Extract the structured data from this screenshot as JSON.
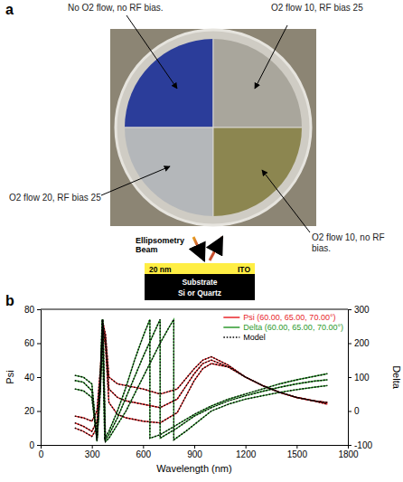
{
  "panel_a": {
    "letter": "a",
    "labels": [
      "No O2 flow, no RF bias.",
      "O2 flow 10, RF bias 25",
      "O2 flow 20, RF bias 25",
      "O2 flow 10, no RF bias."
    ]
  },
  "panel_b": {
    "letter": "b",
    "beam_label": "Ellipsometry Beam",
    "layer_thickness": "20 nm",
    "layer": "ITO",
    "substrate": "Substrate",
    "substrate_material": "Si or Quartz"
  },
  "chart_data": {
    "type": "line",
    "x_label": "Wavelength (nm)",
    "y_label": "Psi",
    "y2_label": "Delta",
    "xlim": [
      0,
      1800
    ],
    "xticks": [
      0,
      300,
      600,
      900,
      1200,
      1500,
      1800
    ],
    "ylim": [
      0,
      80
    ],
    "yticks": [
      0,
      20,
      40,
      60,
      80
    ],
    "y2lim": [
      -100,
      300
    ],
    "y2ticks": [
      -100,
      0,
      100,
      200,
      300
    ],
    "grid": false,
    "legend": "upper right",
    "series": [
      {
        "name": "Psi (60.00, 65.00, 70.00°)",
        "color": "#e8262a",
        "line_style": "solid",
        "axis": "y",
        "x": [
          200,
          250,
          300,
          330,
          350,
          365,
          380,
          400,
          450,
          500,
          600,
          700,
          800,
          900,
          950,
          1000,
          1100,
          1200,
          1300,
          1400,
          1500,
          1600,
          1680
        ],
        "values": [
          17,
          16,
          14,
          20,
          45,
          72,
          65,
          40,
          36,
          35,
          33,
          30,
          33,
          45,
          50,
          52,
          47,
          40,
          35,
          31,
          28,
          26,
          25
        ]
      },
      {
        "name": "Psi (60.00, 65.00, 70.00°)",
        "color": "#e8262a",
        "line_style": "solid",
        "axis": "y",
        "x": [
          200,
          250,
          300,
          330,
          350,
          365,
          380,
          400,
          450,
          500,
          600,
          700,
          800,
          900,
          950,
          1000,
          1100,
          1200,
          1300,
          1400,
          1500,
          1600,
          1680
        ],
        "values": [
          13,
          11,
          8,
          14,
          40,
          70,
          62,
          33,
          28,
          26,
          24,
          22,
          27,
          42,
          48,
          50,
          46,
          40,
          35,
          31,
          28,
          26,
          25
        ]
      },
      {
        "name": "Psi (60.00, 65.00, 70.00°)",
        "color": "#e8262a",
        "line_style": "solid",
        "axis": "y",
        "x": [
          200,
          250,
          300,
          330,
          350,
          365,
          380,
          400,
          450,
          500,
          600,
          700,
          800,
          900,
          950,
          1000,
          1100,
          1200,
          1300,
          1400,
          1500,
          1600,
          1680
        ],
        "values": [
          10,
          8,
          5,
          10,
          35,
          68,
          58,
          25,
          18,
          16,
          14,
          13,
          19,
          38,
          45,
          48,
          46,
          40,
          35,
          31,
          28,
          26,
          24
        ]
      },
      {
        "name": "Delta (60.00, 65.00, 70.00°)",
        "color": "#2e9a2e",
        "line_style": "solid",
        "axis": "y2",
        "x": [
          200,
          250,
          300,
          330,
          350,
          360,
          375,
          400,
          450,
          500,
          550,
          600,
          640,
          640,
          700,
          800,
          900,
          1000,
          1100,
          1200,
          1300,
          1400,
          1500,
          1600,
          1680
        ],
        "values": [
          105,
          100,
          80,
          -80,
          100,
          270,
          -80,
          -60,
          0,
          70,
          150,
          220,
          270,
          -80,
          -70,
          -40,
          -10,
          15,
          35,
          50,
          65,
          80,
          92,
          102,
          110
        ]
      },
      {
        "name": "Delta (60.00, 65.00, 70.00°)",
        "color": "#2e9a2e",
        "line_style": "solid",
        "axis": "y2",
        "x": [
          200,
          250,
          300,
          330,
          350,
          362,
          378,
          400,
          450,
          500,
          550,
          600,
          650,
          700,
          700,
          800,
          900,
          1000,
          1100,
          1200,
          1300,
          1400,
          1500,
          1600,
          1680
        ],
        "values": [
          90,
          85,
          60,
          -85,
          80,
          270,
          -85,
          -70,
          -20,
          40,
          100,
          160,
          215,
          270,
          -80,
          -50,
          -15,
          10,
          30,
          45,
          58,
          70,
          80,
          88,
          92
        ]
      },
      {
        "name": "Delta (60.00, 65.00, 70.00°)",
        "color": "#2e9a2e",
        "line_style": "solid",
        "axis": "y2",
        "x": [
          200,
          250,
          300,
          330,
          350,
          365,
          380,
          400,
          450,
          500,
          550,
          600,
          650,
          700,
          750,
          780,
          780,
          850,
          900,
          1000,
          1100,
          1200,
          1300,
          1400,
          1500,
          1600,
          1680
        ],
        "values": [
          65,
          60,
          40,
          -90,
          60,
          270,
          -90,
          -80,
          -40,
          0,
          50,
          100,
          150,
          200,
          245,
          270,
          -85,
          -60,
          -40,
          0,
          20,
          35,
          45,
          55,
          63,
          70,
          75
        ]
      },
      {
        "name": "Model",
        "color": "#000000",
        "line_style": "dotted",
        "axis": "y",
        "x": [
          200,
          250,
          300,
          330,
          350,
          365,
          380,
          400,
          450,
          500,
          600,
          700,
          800,
          900,
          950,
          1000,
          1100,
          1200,
          1300,
          1400,
          1500,
          1600,
          1680
        ],
        "values": [
          17,
          16,
          14,
          20,
          45,
          72,
          65,
          40,
          36,
          35,
          33,
          30,
          33,
          45,
          50,
          52,
          47,
          40,
          35,
          31,
          28,
          26,
          25
        ]
      },
      {
        "name": "Model",
        "color": "#000000",
        "line_style": "dotted",
        "axis": "y",
        "x": [
          200,
          250,
          300,
          330,
          350,
          365,
          380,
          400,
          450,
          500,
          600,
          700,
          800,
          900,
          950,
          1000,
          1100,
          1200,
          1300,
          1400,
          1500,
          1600,
          1680
        ],
        "values": [
          13,
          11,
          8,
          14,
          40,
          70,
          62,
          33,
          28,
          26,
          24,
          22,
          27,
          42,
          48,
          50,
          46,
          40,
          35,
          31,
          28,
          26,
          25
        ]
      },
      {
        "name": "Model",
        "color": "#000000",
        "line_style": "dotted",
        "axis": "y",
        "x": [
          200,
          250,
          300,
          330,
          350,
          365,
          380,
          400,
          450,
          500,
          600,
          700,
          800,
          900,
          950,
          1000,
          1100,
          1200,
          1300,
          1400,
          1500,
          1600,
          1680
        ],
        "values": [
          10,
          8,
          5,
          10,
          35,
          68,
          58,
          25,
          18,
          16,
          14,
          13,
          19,
          38,
          45,
          48,
          46,
          40,
          35,
          31,
          28,
          26,
          24
        ]
      },
      {
        "name": "Model",
        "color": "#000000",
        "line_style": "dotted",
        "axis": "y2",
        "x": [
          200,
          250,
          300,
          330,
          350,
          360,
          375,
          400,
          450,
          500,
          550,
          600,
          640,
          640,
          700,
          800,
          900,
          1000,
          1100,
          1200,
          1300,
          1400,
          1500,
          1600,
          1680
        ],
        "values": [
          105,
          100,
          80,
          -80,
          100,
          270,
          -80,
          -60,
          0,
          70,
          150,
          220,
          270,
          -80,
          -70,
          -40,
          -10,
          15,
          35,
          50,
          65,
          80,
          92,
          102,
          110
        ]
      },
      {
        "name": "Model",
        "color": "#000000",
        "line_style": "dotted",
        "axis": "y2",
        "x": [
          200,
          250,
          300,
          330,
          350,
          362,
          378,
          400,
          450,
          500,
          550,
          600,
          650,
          700,
          700,
          800,
          900,
          1000,
          1100,
          1200,
          1300,
          1400,
          1500,
          1600,
          1680
        ],
        "values": [
          90,
          85,
          60,
          -85,
          80,
          270,
          -85,
          -70,
          -20,
          40,
          100,
          160,
          215,
          270,
          -80,
          -50,
          -15,
          10,
          30,
          45,
          58,
          70,
          80,
          88,
          92
        ]
      },
      {
        "name": "Model",
        "color": "#000000",
        "line_style": "dotted",
        "axis": "y2",
        "x": [
          200,
          250,
          300,
          330,
          350,
          365,
          380,
          400,
          450,
          500,
          550,
          600,
          650,
          700,
          750,
          780,
          780,
          850,
          900,
          1000,
          1100,
          1200,
          1300,
          1400,
          1500,
          1600,
          1680
        ],
        "values": [
          65,
          60,
          40,
          -90,
          60,
          270,
          -90,
          -80,
          -40,
          0,
          50,
          100,
          150,
          200,
          245,
          270,
          -85,
          -60,
          -40,
          0,
          20,
          35,
          45,
          55,
          63,
          70,
          75
        ]
      }
    ]
  }
}
